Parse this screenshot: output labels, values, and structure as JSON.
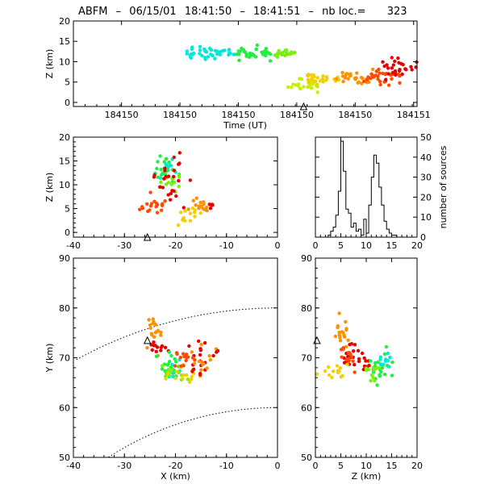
{
  "header": {
    "station_name": "ABFM",
    "separator1": "–",
    "date": "06/15/01",
    "time_start": "18:41:50",
    "separator2": "–",
    "time_end": "18:41:51",
    "separator3": "–",
    "count_label": "nb loc.=",
    "count_value": "323"
  },
  "chart_data": [
    {
      "id": "time-height",
      "type": "scatter",
      "xlabel": "Time (UT)",
      "ylabel": "Z (km)",
      "xlim": [
        50.0,
        51.0
      ],
      "ylim": [
        -1,
        20
      ],
      "x_tick_labels": [
        "184150",
        "184150",
        "184150",
        "184150",
        "184150",
        "184151"
      ],
      "x_tick_values": [
        50.14,
        50.31,
        50.48,
        50.65,
        50.82,
        50.99
      ],
      "y_ticks": [
        0,
        5,
        10,
        15,
        20
      ],
      "station_marker_x": 50.67,
      "color_scale": "time: cyan → green → yellow → orange → red",
      "series": [
        {
          "color": "#00e8d8",
          "x_range": [
            50.33,
            50.47
          ],
          "y_center": 12.0,
          "y_spread": 1.1,
          "count": 40
        },
        {
          "color": "#20ee40",
          "x_range": [
            50.47,
            50.58
          ],
          "y_center": 12.2,
          "y_spread": 1.3,
          "count": 35
        },
        {
          "color": "#7aef10",
          "x_range": [
            50.58,
            50.65
          ],
          "y_center": 12.0,
          "y_spread": 0.9,
          "count": 22
        },
        {
          "color": "#c8ee00",
          "x_range": [
            50.62,
            50.72
          ],
          "y_center": 4.2,
          "y_spread": 1.3,
          "count": 24
        },
        {
          "color": "#f2d000",
          "x_range": [
            50.68,
            50.78
          ],
          "y_center": 6.0,
          "y_spread": 1.3,
          "count": 26
        },
        {
          "color": "#ff9000",
          "x_range": [
            50.76,
            50.88
          ],
          "y_center": 6.0,
          "y_spread": 1.4,
          "count": 30
        },
        {
          "color": "#ff4a00",
          "x_range": [
            50.84,
            50.95
          ],
          "y_center": 6.5,
          "y_spread": 1.6,
          "count": 28
        },
        {
          "color": "#e80000",
          "x_range": [
            50.9,
            51.0
          ],
          "y_center": 8.5,
          "y_spread": 2.0,
          "count": 28
        }
      ]
    },
    {
      "id": "x-z-view",
      "type": "scatter",
      "xlabel": "",
      "ylabel": "Z (km)",
      "xlim": [
        -40,
        0
      ],
      "ylim": [
        -1,
        20
      ],
      "x_ticks": [
        -40,
        -30,
        -20,
        -10,
        0
      ],
      "y_ticks": [
        0,
        5,
        10,
        15,
        20
      ],
      "station_marker_x": -25.5,
      "clusters": [
        {
          "color": "#20ee40",
          "x": -22.0,
          "y": 13.0,
          "sx": 1.2,
          "sy": 1.5,
          "count": 22
        },
        {
          "color": "#00e8d8",
          "x": -21.5,
          "y": 13.5,
          "sx": 0.8,
          "sy": 1.0,
          "count": 10
        },
        {
          "color": "#7aef10",
          "x": -20.5,
          "y": 10.5,
          "sx": 1.0,
          "sy": 1.2,
          "count": 12
        },
        {
          "color": "#e80000",
          "x": -21.0,
          "y": 12.0,
          "sx": 1.6,
          "sy": 2.0,
          "count": 16
        },
        {
          "color": "#ff4a00",
          "x": -24.5,
          "y": 5.5,
          "sx": 1.2,
          "sy": 1.0,
          "count": 18
        },
        {
          "color": "#ff9000",
          "x": -15.0,
          "y": 5.6,
          "sx": 1.3,
          "sy": 0.9,
          "count": 16
        },
        {
          "color": "#f2d000",
          "x": -17.5,
          "y": 3.8,
          "sx": 1.5,
          "sy": 1.2,
          "count": 14
        },
        {
          "color": "#e80000",
          "x": -20.0,
          "y": 7.5,
          "sx": 1.0,
          "sy": 1.0,
          "count": 8
        },
        {
          "color": "#e80000",
          "x": -13.0,
          "y": 6.0,
          "sx": 0.8,
          "sy": 0.6,
          "count": 5
        }
      ]
    },
    {
      "id": "altitude-histogram",
      "type": "line",
      "xlabel": "",
      "ylabel": "number of sources",
      "xlim": [
        0,
        20
      ],
      "ylim": [
        0,
        50
      ],
      "x_ticks": [
        0,
        5,
        10,
        15,
        20
      ],
      "y_ticks": [
        0,
        10,
        20,
        30,
        40,
        50
      ],
      "bin_width": 0.5,
      "x": [
        0,
        0.5,
        1,
        1.5,
        2,
        2.5,
        3,
        3.5,
        4,
        4.5,
        5,
        5.5,
        6,
        6.5,
        7,
        7.5,
        8,
        8.5,
        9,
        9.5,
        10,
        10.5,
        11,
        11.5,
        12,
        12.5,
        13,
        13.5,
        14,
        14.5,
        15,
        15.5,
        16,
        16.5,
        17,
        17.5,
        18,
        18.5,
        19,
        19.5
      ],
      "values": [
        0,
        0,
        0,
        0,
        0,
        1,
        3,
        5,
        11,
        23,
        48,
        33,
        14,
        12,
        5,
        7,
        3,
        4,
        1,
        9,
        2,
        16,
        30,
        41,
        37,
        25,
        16,
        8,
        4,
        2,
        1,
        1,
        0,
        0,
        0,
        0,
        0,
        0,
        0,
        0
      ]
    },
    {
      "id": "plan-view",
      "type": "scatter",
      "xlabel": "X (km)",
      "ylabel": "Y (km)",
      "xlim": [
        -40,
        0
      ],
      "ylim": [
        50,
        90
      ],
      "x_ticks": [
        -40,
        -30,
        -20,
        -10,
        0
      ],
      "y_ticks": [
        50,
        60,
        70,
        80,
        90
      ],
      "station_marker": [
        -25.5,
        73.5
      ],
      "range_rings_km": [
        60,
        80
      ],
      "clusters": [
        {
          "color": "#ff9000",
          "x": -24.5,
          "y": 75.0,
          "sx": 0.9,
          "sy": 1.6,
          "count": 18
        },
        {
          "color": "#e80000",
          "x": -23.5,
          "y": 72.0,
          "sx": 1.2,
          "sy": 1.0,
          "count": 12
        },
        {
          "color": "#20ee40",
          "x": -21.5,
          "y": 68.5,
          "sx": 1.2,
          "sy": 1.3,
          "count": 22
        },
        {
          "color": "#00e8d8",
          "x": -20.5,
          "y": 67.5,
          "sx": 0.8,
          "sy": 1.0,
          "count": 10
        },
        {
          "color": "#7aef10",
          "x": -20.0,
          "y": 67.0,
          "sx": 1.2,
          "sy": 1.0,
          "count": 12
        },
        {
          "color": "#f2d000",
          "x": -19.0,
          "y": 66.5,
          "sx": 2.0,
          "sy": 0.8,
          "count": 14
        },
        {
          "color": "#e80000",
          "x": -15.5,
          "y": 70.0,
          "sx": 1.0,
          "sy": 1.5,
          "count": 16
        },
        {
          "color": "#ff4a00",
          "x": -18.0,
          "y": 70.0,
          "sx": 1.2,
          "sy": 0.9,
          "count": 14
        },
        {
          "color": "#ff9000",
          "x": -15.0,
          "y": 69.0,
          "sx": 1.0,
          "sy": 1.4,
          "count": 12
        },
        {
          "color": "#e80000",
          "x": -12.0,
          "y": 71.0,
          "sx": 0.6,
          "sy": 0.4,
          "count": 3
        }
      ]
    },
    {
      "id": "z-y-view",
      "type": "scatter",
      "xlabel": "Z (km)",
      "ylabel": "",
      "xlim": [
        0,
        20
      ],
      "ylim": [
        50,
        90
      ],
      "x_ticks": [
        0,
        5,
        10,
        15,
        20
      ],
      "y_ticks": [
        50,
        60,
        70,
        80,
        90
      ],
      "station_marker": [
        0.3,
        73.5
      ],
      "clusters": [
        {
          "color": "#ff9000",
          "x": 5.5,
          "y": 75.0,
          "sx": 0.8,
          "sy": 1.6,
          "count": 18
        },
        {
          "color": "#e80000",
          "x": 6.5,
          "y": 71.0,
          "sx": 1.2,
          "sy": 1.2,
          "count": 16
        },
        {
          "color": "#ff4a00",
          "x": 6.0,
          "y": 70.0,
          "sx": 1.3,
          "sy": 1.0,
          "count": 12
        },
        {
          "color": "#f2d000",
          "x": 4.0,
          "y": 67.0,
          "sx": 1.6,
          "sy": 1.0,
          "count": 14
        },
        {
          "color": "#e80000",
          "x": 9.5,
          "y": 69.5,
          "sx": 0.8,
          "sy": 1.2,
          "count": 10
        },
        {
          "color": "#20ee40",
          "x": 12.5,
          "y": 68.0,
          "sx": 1.3,
          "sy": 1.2,
          "count": 22
        },
        {
          "color": "#00e8d8",
          "x": 13.5,
          "y": 69.0,
          "sx": 0.9,
          "sy": 1.0,
          "count": 10
        },
        {
          "color": "#7aef10",
          "x": 11.5,
          "y": 67.0,
          "sx": 1.0,
          "sy": 1.0,
          "count": 12
        }
      ]
    }
  ]
}
